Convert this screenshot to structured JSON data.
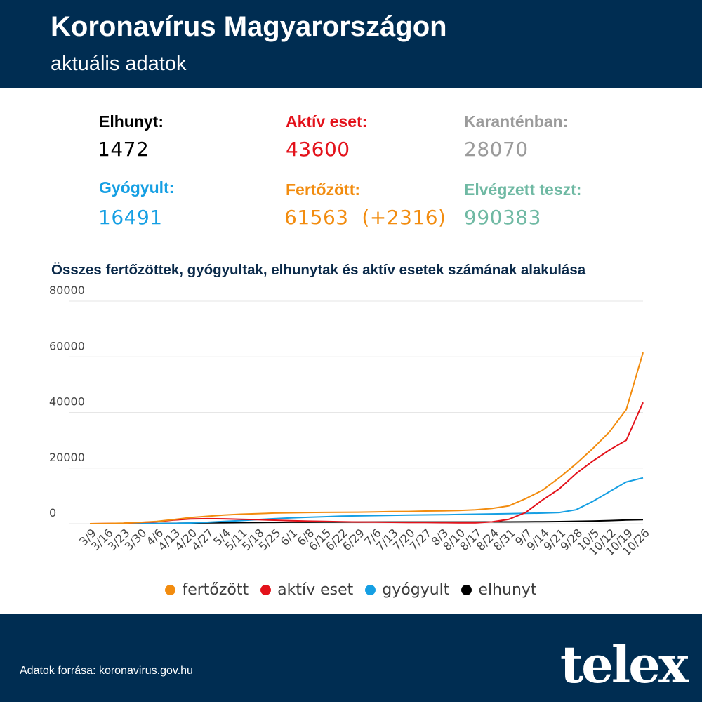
{
  "header": {
    "title": "Koronavírus Magyarországon",
    "subtitle": "aktuális adatok"
  },
  "stats": {
    "deaths": {
      "label": "Elhunyt:",
      "value": "1472",
      "color": "#000000"
    },
    "active": {
      "label": "Aktív eset:",
      "value": "43600",
      "color": "#e3121b"
    },
    "quarantine": {
      "label": "Karanténban:",
      "value": "28070",
      "color": "#9b9b9b"
    },
    "recovered": {
      "label": "Gyógyult:",
      "value": "16491",
      "color": "#159fe3"
    },
    "infected": {
      "label": "Fertőzött:",
      "value": "61563  (+2316)",
      "color": "#f28c0f"
    },
    "tests": {
      "label": "Elvégzett teszt:",
      "value": "990383",
      "color": "#6fb9a3"
    }
  },
  "chart_title": "Összes fertőzöttek, gyógyultak, elhunytak és aktív esetek számának alakulása",
  "chart_data": {
    "type": "line",
    "title": "Összes fertőzöttek, gyógyultak, elhunytak és aktív esetek számának alakulása",
    "xlabel": "",
    "ylabel": "",
    "ylim": [
      0,
      80000
    ],
    "yticks": [
      "0",
      "20000",
      "40000",
      "60000",
      "80000"
    ],
    "categories": [
      "3/9",
      "3/16",
      "3/23",
      "3/30",
      "4/6",
      "4/13",
      "4/20",
      "4/27",
      "5/4",
      "5/11",
      "5/18",
      "5/25",
      "6/1",
      "6/8",
      "6/15",
      "6/22",
      "6/29",
      "7/6",
      "7/13",
      "7/20",
      "7/27",
      "8/3",
      "8/10",
      "8/17",
      "8/24",
      "8/31",
      "9/7",
      "9/14",
      "9/21",
      "9/28",
      "10/5",
      "10/12",
      "10/19",
      "10/26"
    ],
    "grid": true,
    "legend_position": "bottom",
    "series": [
      {
        "name": "fertőzött",
        "color": "#f28c0f",
        "values": [
          12,
          50,
          170,
          490,
          800,
          1500,
          2200,
          2650,
          3100,
          3400,
          3600,
          3800,
          3900,
          4000,
          4070,
          4110,
          4150,
          4250,
          4330,
          4400,
          4540,
          4600,
          4750,
          5000,
          5510,
          6400,
          9000,
          12000,
          16500,
          21500,
          27000,
          33000,
          41000,
          61563
        ]
      },
      {
        "name": "aktív eset",
        "color": "#e3121b",
        "values": [
          12,
          48,
          160,
          450,
          700,
          1300,
          1700,
          1800,
          1750,
          1600,
          1450,
          1250,
          1050,
          900,
          800,
          700,
          600,
          550,
          500,
          450,
          430,
          380,
          330,
          300,
          650,
          1600,
          4000,
          8500,
          12500,
          18000,
          22500,
          26500,
          30000,
          43600
        ]
      },
      {
        "name": "gyógyult",
        "color": "#159fe3",
        "values": [
          0,
          2,
          5,
          20,
          60,
          100,
          250,
          500,
          800,
          1100,
          1500,
          1800,
          2100,
          2300,
          2500,
          2700,
          2800,
          2900,
          3000,
          3100,
          3150,
          3200,
          3300,
          3400,
          3500,
          3600,
          3700,
          3800,
          4000,
          5000,
          8000,
          11500,
          15000,
          16491
        ]
      },
      {
        "name": "elhunyt",
        "color": "#000000",
        "values": [
          0,
          1,
          10,
          26,
          66,
          134,
          200,
          300,
          350,
          400,
          450,
          480,
          520,
          540,
          560,
          580,
          590,
          595,
          596,
          597,
          598,
          599,
          602,
          610,
          620,
          630,
          660,
          700,
          760,
          850,
          950,
          1100,
          1300,
          1472
        ]
      }
    ]
  },
  "legend": [
    {
      "label": "fertőzött",
      "color": "#f28c0f"
    },
    {
      "label": "aktív eset",
      "color": "#e3121b"
    },
    {
      "label": "gyógyult",
      "color": "#159fe3"
    },
    {
      "label": "elhunyt",
      "color": "#000000"
    }
  ],
  "footer": {
    "source_prefix": "Adatok forrása: ",
    "source_link": "koronavirus.gov.hu",
    "logo": "telex"
  }
}
